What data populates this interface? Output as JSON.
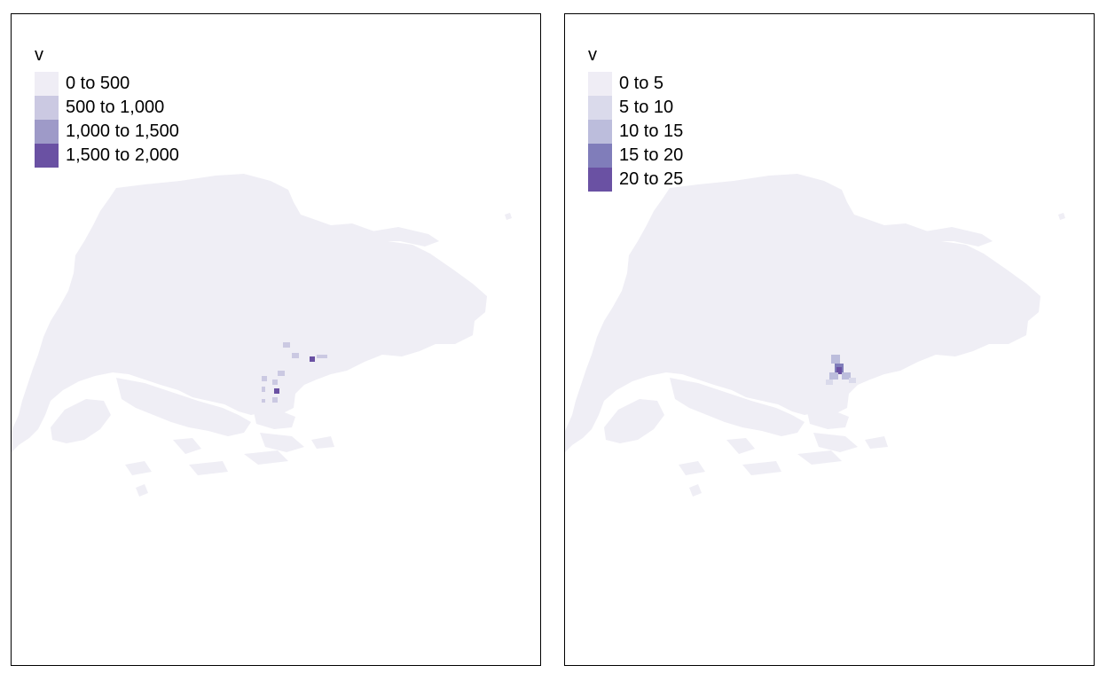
{
  "panels": [
    {
      "legend": {
        "title": "v",
        "items": [
          {
            "label": "0 to 500",
            "color": "#efedf5"
          },
          {
            "label": "500 to 1,000",
            "color": "#cbc9e2"
          },
          {
            "label": "1,000 to 1,500",
            "color": "#9e9ac8"
          },
          {
            "label": "1,500 to 2,000",
            "color": "#6a51a3"
          }
        ]
      }
    },
    {
      "legend": {
        "title": "v",
        "items": [
          {
            "label": "0 to 5",
            "color": "#efedf5"
          },
          {
            "label": "5 to 10",
            "color": "#dadaeb"
          },
          {
            "label": "10 to 15",
            "color": "#bcbddc"
          },
          {
            "label": "15 to 20",
            "color": "#807dba"
          },
          {
            "label": "20 to 25",
            "color": "#6a51a3"
          }
        ]
      }
    }
  ],
  "colors": {
    "land": "#efeef5",
    "border": "#000000",
    "background": "#ffffff"
  }
}
